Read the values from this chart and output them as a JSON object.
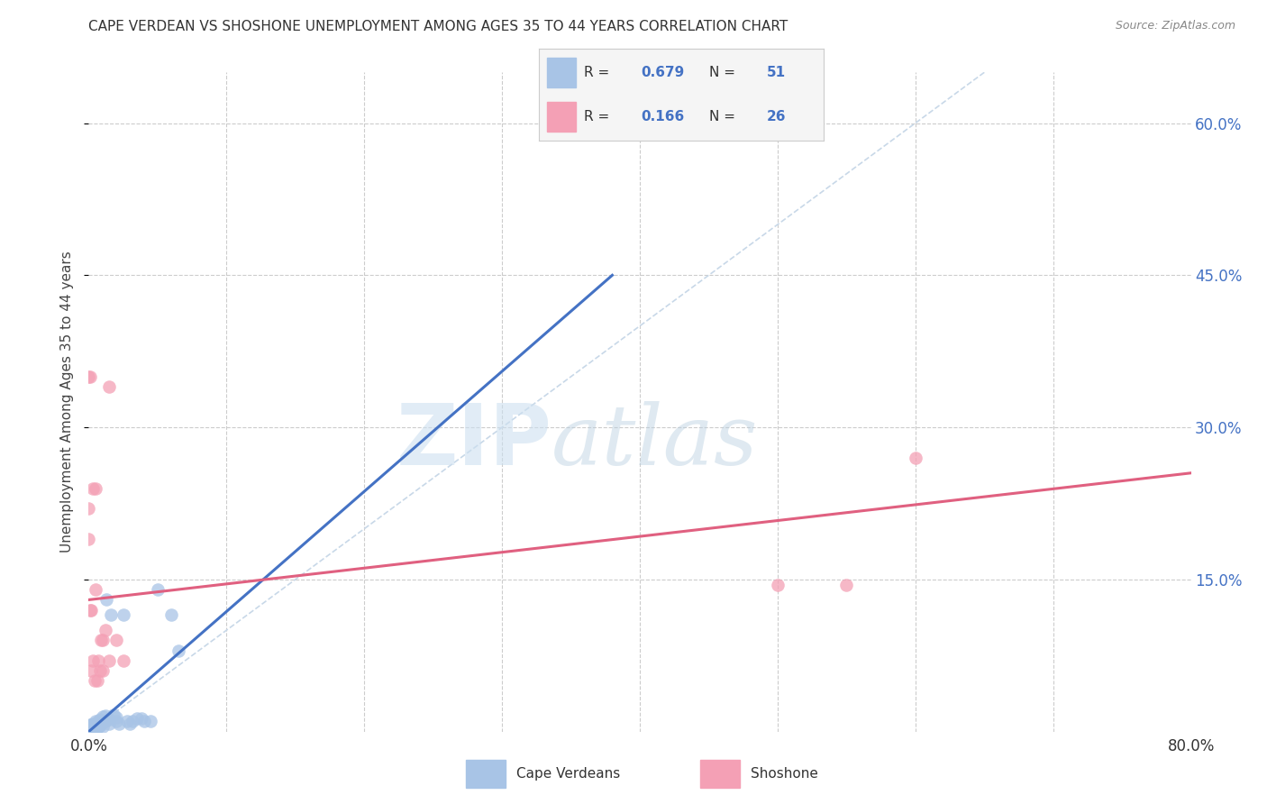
{
  "title": "CAPE VERDEAN VS SHOSHONE UNEMPLOYMENT AMONG AGES 35 TO 44 YEARS CORRELATION CHART",
  "source": "Source: ZipAtlas.com",
  "ylabel": "Unemployment Among Ages 35 to 44 years",
  "xlim": [
    0,
    0.8
  ],
  "ylim": [
    0,
    0.65
  ],
  "xticks": [
    0.0,
    0.1,
    0.2,
    0.3,
    0.4,
    0.5,
    0.6,
    0.7,
    0.8
  ],
  "ytick_positions": [
    0.15,
    0.3,
    0.45,
    0.6
  ],
  "ytick_labels": [
    "15.0%",
    "30.0%",
    "45.0%",
    "60.0%"
  ],
  "cv_color": "#a8c4e6",
  "sh_color": "#f4a0b5",
  "cv_line_color": "#4472c4",
  "sh_line_color": "#e06080",
  "diag_color": "#c8d8e8",
  "R1": "0.679",
  "N1": "51",
  "R2": "0.166",
  "N2": "26",
  "cv_line_x0": 0.0,
  "cv_line_y0": 0.0,
  "cv_line_x1": 0.38,
  "cv_line_y1": 0.45,
  "sh_line_x0": 0.0,
  "sh_line_y0": 0.13,
  "sh_line_x1": 0.8,
  "sh_line_y1": 0.255,
  "cv_x": [
    0.0,
    0.0,
    0.0,
    0.001,
    0.001,
    0.001,
    0.002,
    0.002,
    0.002,
    0.002,
    0.003,
    0.003,
    0.003,
    0.003,
    0.004,
    0.004,
    0.004,
    0.005,
    0.005,
    0.005,
    0.006,
    0.006,
    0.007,
    0.007,
    0.008,
    0.008,
    0.009,
    0.01,
    0.01,
    0.01,
    0.012,
    0.012,
    0.013,
    0.015,
    0.015,
    0.016,
    0.018,
    0.02,
    0.02,
    0.022,
    0.025,
    0.028,
    0.03,
    0.032,
    0.035,
    0.038,
    0.04,
    0.045,
    0.05,
    0.06,
    0.065
  ],
  "cv_y": [
    0.0,
    0.002,
    0.005,
    0.0,
    0.003,
    0.007,
    0.001,
    0.003,
    0.005,
    0.007,
    0.001,
    0.003,
    0.006,
    0.008,
    0.002,
    0.005,
    0.008,
    0.002,
    0.006,
    0.01,
    0.004,
    0.009,
    0.005,
    0.01,
    0.006,
    0.012,
    0.008,
    0.005,
    0.01,
    0.015,
    0.01,
    0.016,
    0.13,
    0.008,
    0.012,
    0.115,
    0.017,
    0.01,
    0.014,
    0.008,
    0.115,
    0.01,
    0.008,
    0.01,
    0.013,
    0.013,
    0.01,
    0.01,
    0.14,
    0.115,
    0.08
  ],
  "sh_x": [
    0.0,
    0.0,
    0.0,
    0.001,
    0.001,
    0.002,
    0.002,
    0.003,
    0.003,
    0.004,
    0.005,
    0.005,
    0.006,
    0.007,
    0.008,
    0.009,
    0.01,
    0.01,
    0.012,
    0.015,
    0.015,
    0.02,
    0.025,
    0.5,
    0.55,
    0.6
  ],
  "sh_y": [
    0.19,
    0.22,
    0.35,
    0.35,
    0.12,
    0.06,
    0.12,
    0.07,
    0.24,
    0.05,
    0.14,
    0.24,
    0.05,
    0.07,
    0.06,
    0.09,
    0.06,
    0.09,
    0.1,
    0.07,
    0.34,
    0.09,
    0.07,
    0.145,
    0.145,
    0.27
  ]
}
